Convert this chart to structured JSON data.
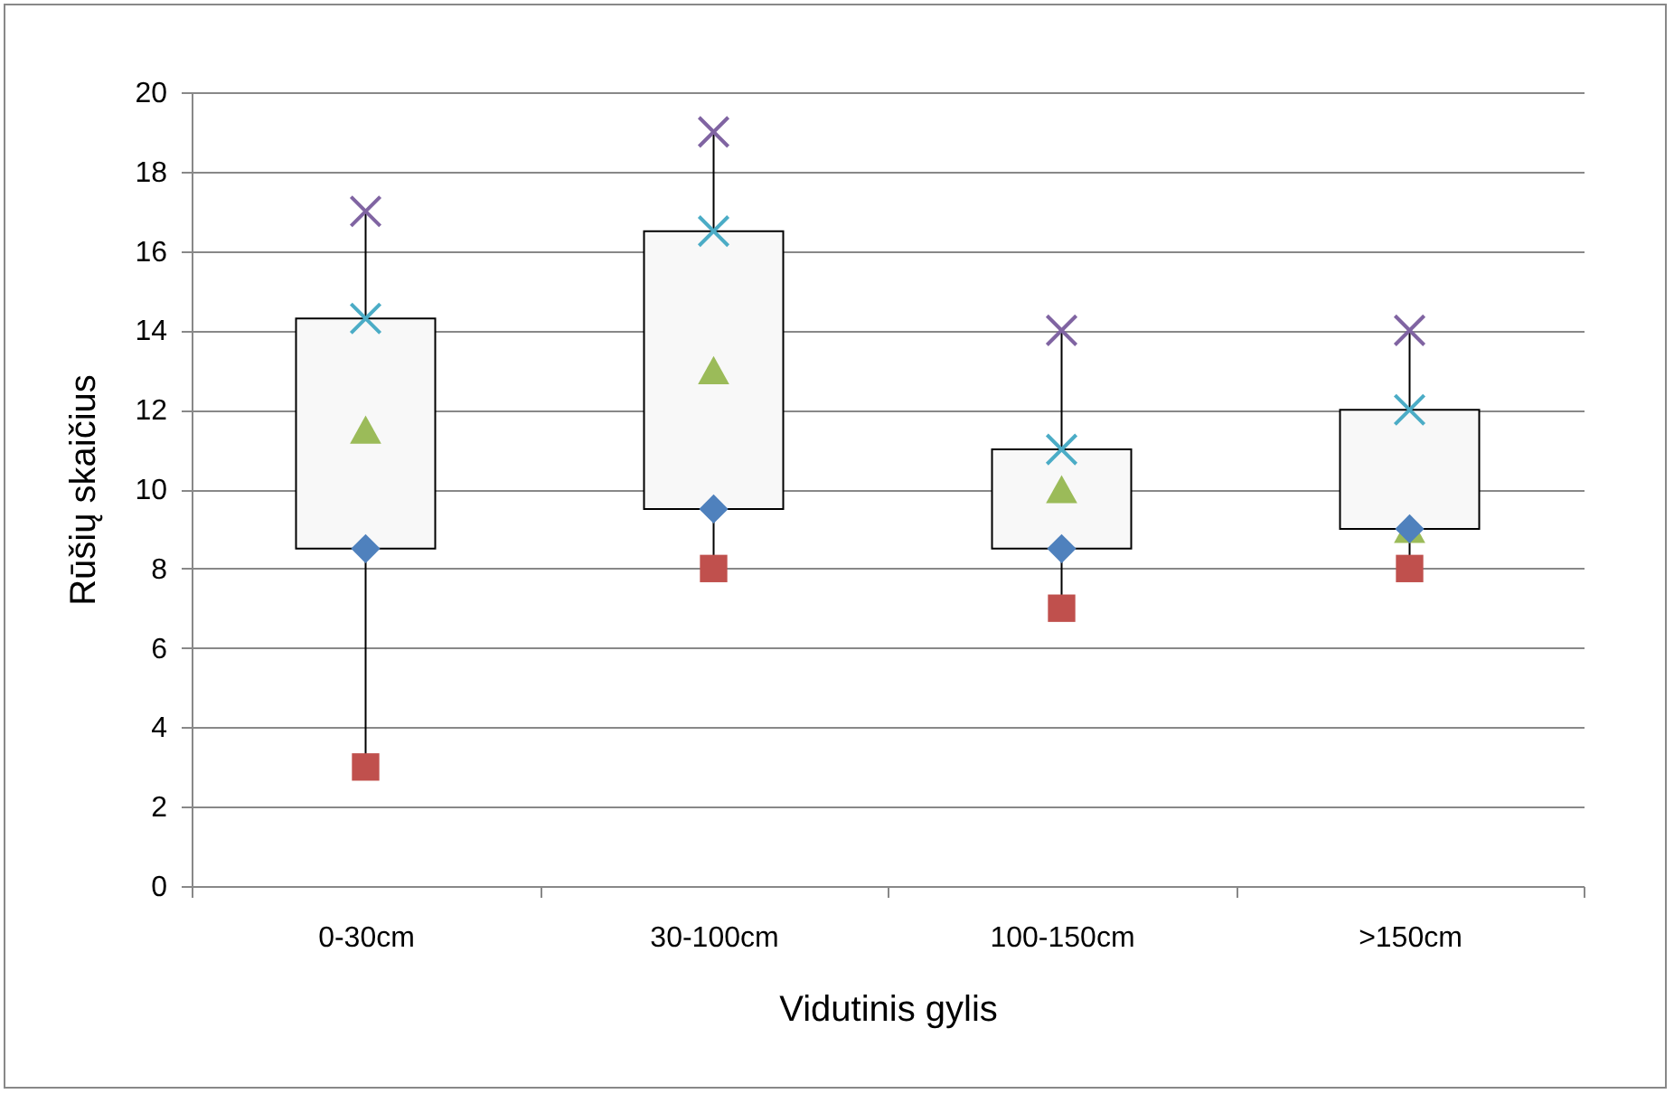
{
  "chart_data": {
    "type": "box",
    "xlabel": "Vidutinis gylis",
    "ylabel": "Rūšių skaičius",
    "categories": [
      "0-30cm",
      "30-100cm",
      "100-150cm",
      ">150cm"
    ],
    "boxes": [
      {
        "low": 3,
        "q1": 8.5,
        "median": 11.5,
        "q3": 14.3,
        "high": 17
      },
      {
        "low": 8,
        "q1": 9.5,
        "median": 13,
        "q3": 16.5,
        "high": 19
      },
      {
        "low": 7,
        "q1": 8.5,
        "median": 10,
        "q3": 11,
        "high": 14
      },
      {
        "low": 8,
        "q1": 9,
        "median": 9,
        "q3": 12,
        "high": 14
      }
    ],
    "series": [
      {
        "type": "scatter",
        "marker": "square",
        "color": "#c0504d",
        "x": [
          "0-30cm",
          "30-100cm",
          "100-150cm",
          ">150cm"
        ],
        "values": [
          3,
          8,
          7,
          8
        ]
      },
      {
        "type": "scatter",
        "marker": "diamond",
        "color": "#4f81bd",
        "x": [
          "0-30cm",
          "30-100cm",
          "100-150cm",
          ">150cm"
        ],
        "values": [
          8.5,
          9.5,
          8.5,
          9
        ]
      },
      {
        "type": "scatter",
        "marker": "cross",
        "color": "#4bacc6",
        "x": [
          "0-30cm",
          "30-100cm",
          "100-150cm",
          ">150cm"
        ],
        "values": [
          14.3,
          16.5,
          11,
          12
        ]
      },
      {
        "type": "scatter",
        "marker": "cross",
        "color": "#8064a2",
        "x": [
          "0-30cm",
          "30-100cm",
          "100-150cm",
          ">150cm"
        ],
        "values": [
          17,
          19,
          14,
          14
        ]
      }
    ],
    "ylim": [
      0,
      20
    ],
    "yticks": [
      0,
      2,
      4,
      6,
      8,
      10,
      12,
      14,
      16,
      18,
      20
    ],
    "grid": "y"
  }
}
